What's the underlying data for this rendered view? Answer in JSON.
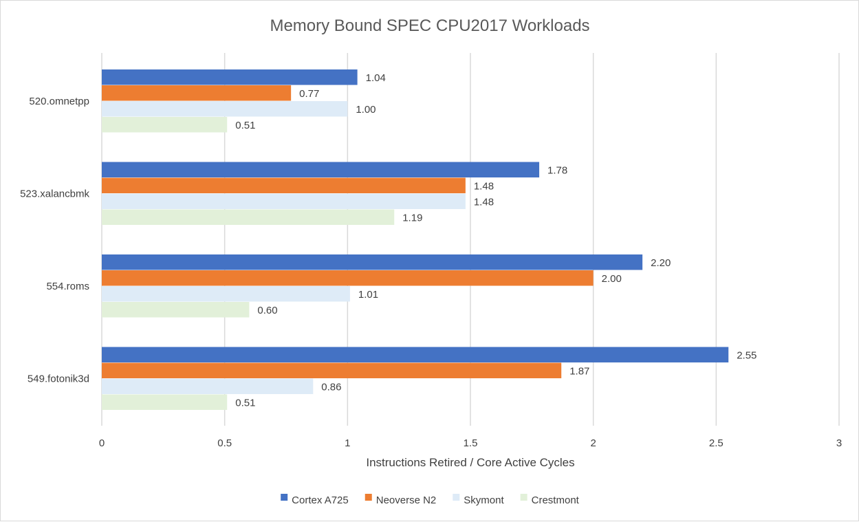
{
  "chart_data": {
    "type": "bar",
    "orientation": "horizontal",
    "title": "Memory Bound SPEC CPU2017 Workloads",
    "xlabel": "Instructions Retired / Core Active Cycles",
    "ylabel": "",
    "xlim": [
      0,
      3
    ],
    "xticks": [
      "0",
      "0.5",
      "1",
      "1.5",
      "2",
      "2.5",
      "3"
    ],
    "xtick_values": [
      0,
      0.5,
      1,
      1.5,
      2,
      2.5,
      3
    ],
    "grid": "vertical",
    "legend_position": "bottom",
    "categories": [
      "520.omnetpp",
      "523.xalancbmk",
      "554.roms",
      "549.fotonik3d"
    ],
    "series": [
      {
        "name": "Cortex A725",
        "color": "#4472c4",
        "values": [
          1.04,
          1.78,
          2.2,
          2.55
        ],
        "labels": [
          "1.04",
          "1.78",
          "2.20",
          "2.55"
        ]
      },
      {
        "name": "Neoverse N2",
        "color": "#ed7d31",
        "values": [
          0.77,
          1.48,
          2.0,
          1.87
        ],
        "labels": [
          "0.77",
          "1.48",
          "2.00",
          "1.87"
        ]
      },
      {
        "name": "Skymont",
        "color": "#deebf7",
        "values": [
          1.0,
          1.48,
          1.01,
          0.86
        ],
        "labels": [
          "1.00",
          "1.48",
          "1.01",
          "0.86"
        ]
      },
      {
        "name": "Crestmont",
        "color": "#e2f0d9",
        "values": [
          0.51,
          1.19,
          0.6,
          0.51
        ],
        "labels": [
          "0.51",
          "1.19",
          "0.60",
          "0.51"
        ]
      }
    ]
  }
}
